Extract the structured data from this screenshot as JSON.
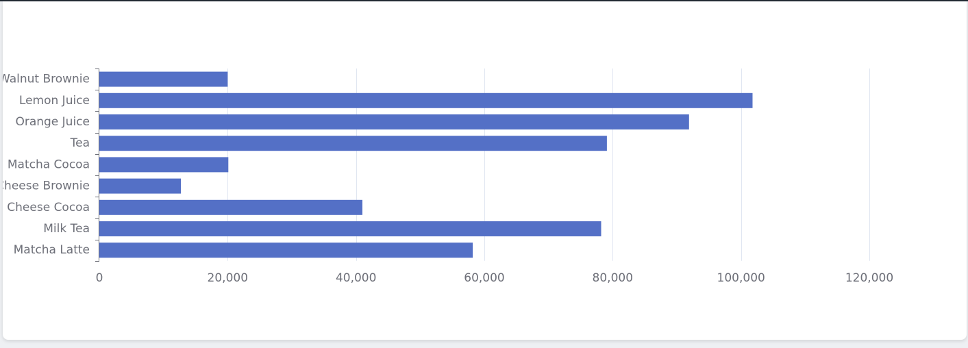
{
  "colors": {
    "bar": "#5470c6",
    "grid": "#e0e6f1",
    "axis": "#6e7079",
    "text": "#6e7079"
  },
  "chart_data": {
    "type": "bar",
    "orientation": "horizontal",
    "categories": [
      "Walnut Brownie",
      "Lemon Juice",
      "Orange Juice",
      "Tea",
      "Matcha Cocoa",
      "Cheese Brownie",
      "Cheese Cocoa",
      "Milk Tea",
      "Matcha Latte"
    ],
    "values": [
      20000,
      101800,
      91900,
      79100,
      20100,
      12700,
      41000,
      78200,
      58200
    ],
    "xlim": [
      0,
      130000
    ],
    "x_ticks": [
      0,
      20000,
      40000,
      60000,
      80000,
      100000,
      120000
    ],
    "x_tick_labels": [
      "0",
      "20,000",
      "40,000",
      "60,000",
      "80,000",
      "100,000",
      "120,000"
    ],
    "grid": true,
    "legend": "none"
  }
}
